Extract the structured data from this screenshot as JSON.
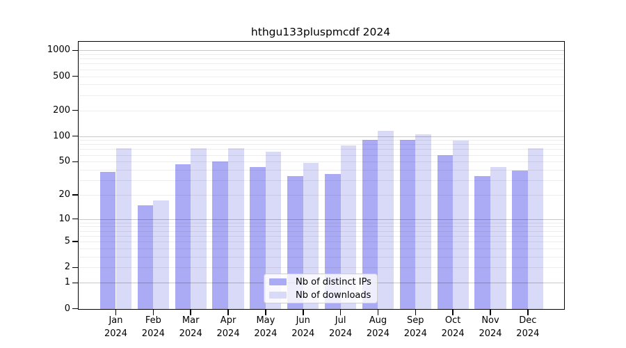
{
  "chart_data": {
    "type": "bar",
    "title": "hthgu133pluspmcdf 2024",
    "categories": [
      "Jan 2024",
      "Feb 2024",
      "Mar 2024",
      "Apr 2024",
      "May 2024",
      "Jun 2024",
      "Jul 2024",
      "Aug 2024",
      "Sep 2024",
      "Oct 2024",
      "Nov 2024",
      "Dec 2024"
    ],
    "series": [
      {
        "name": "Nb of distinct IPs",
        "color": "#aaaaf5",
        "values": [
          38,
          15,
          47,
          50,
          43,
          34,
          36,
          90,
          90,
          60,
          34,
          39
        ]
      },
      {
        "name": "Nb of downloads",
        "color": "#d9d9f8",
        "values": [
          72,
          17,
          72,
          72,
          65,
          48,
          78,
          115,
          105,
          88,
          43,
          72
        ]
      }
    ],
    "xlabel": "",
    "ylabel": "",
    "y_axis": {
      "scale": "log10(value+1)",
      "ticks": [
        0,
        1,
        2,
        5,
        10,
        20,
        50,
        100,
        200,
        500,
        1000
      ],
      "range": [
        0,
        1270
      ]
    },
    "grid": {
      "on": true,
      "major_values": [
        1,
        10,
        100,
        1000
      ],
      "minor_values": [
        2,
        3,
        4,
        5,
        6,
        7,
        8,
        9,
        20,
        30,
        40,
        50,
        60,
        70,
        80,
        90,
        200,
        300,
        400,
        500,
        600,
        700,
        800,
        900
      ]
    },
    "legend_position": "lower center"
  }
}
